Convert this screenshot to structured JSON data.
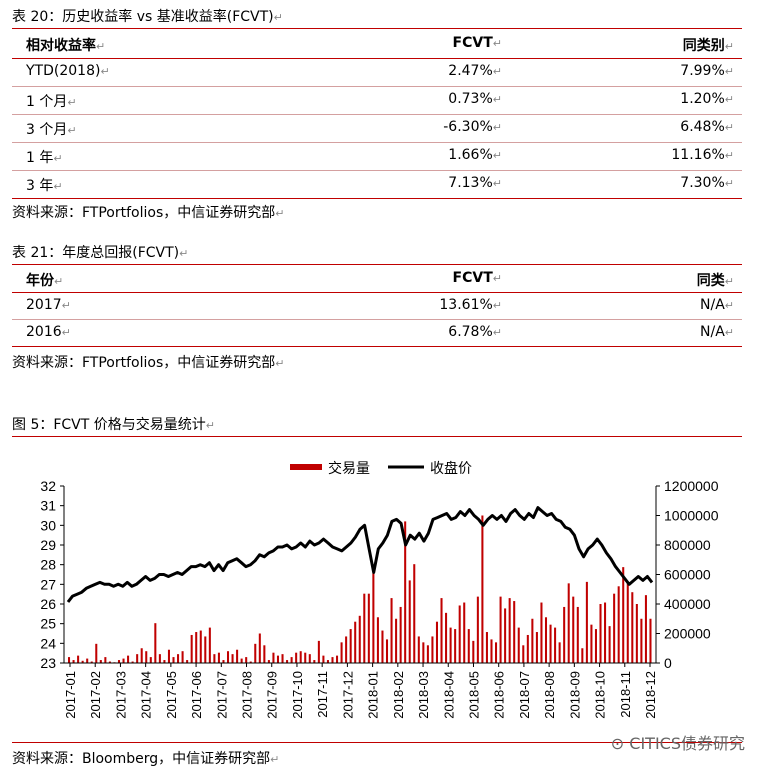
{
  "table20": {
    "caption": "表 20：历史收益率 vs 基准收益率(FCVT)",
    "headers": [
      "相对收益率",
      "FCVT",
      "同类别"
    ],
    "rows": [
      [
        "YTD(2018)",
        "2.47%",
        "7.99%"
      ],
      [
        "1 个月",
        "0.73%",
        "1.20%"
      ],
      [
        "3 个月",
        "-6.30%",
        "6.48%"
      ],
      [
        "1  年",
        "1.66%",
        "11.16%"
      ],
      [
        "3  年",
        "7.13%",
        "7.30%"
      ]
    ],
    "source": "资料来源：FTPortfolios，中信证券研究部"
  },
  "table21": {
    "caption": "表 21：年度总回报(FCVT)",
    "headers": [
      "年份",
      "FCVT",
      "同类"
    ],
    "rows": [
      [
        "2017",
        "13.61%",
        "N/A"
      ],
      [
        "2016",
        "6.78%",
        "N/A"
      ]
    ],
    "source": "资料来源：FTPortfolios，中信证券研究部"
  },
  "figure5": {
    "caption": "图 5：FCVT 价格与交易量统计",
    "source": "资料来源：Bloomberg，中信证券研究部"
  },
  "watermark": "CITICS债券研究",
  "paragraph_mark": "↵",
  "colors": {
    "rule": "#c00000",
    "volume": "#c00000",
    "price": "#000000"
  },
  "chart_data": {
    "type": "bar+line",
    "legend": [
      "交易量",
      "收盘价"
    ],
    "legend_position": "top",
    "x_ticks": [
      "2017-01",
      "2017-02",
      "2017-03",
      "2017-04",
      "2017-05",
      "2017-06",
      "2017-07",
      "2017-08",
      "2017-09",
      "2017-10",
      "2017-11",
      "2017-12",
      "2018-01",
      "2018-02",
      "2018-03",
      "2018-04",
      "2018-05",
      "2018-06",
      "2018-07",
      "2018-08",
      "2018-09",
      "2018-10",
      "2018-11",
      "2018-12"
    ],
    "y_left": {
      "min": 23,
      "max": 32,
      "ticks": [
        23,
        24,
        25,
        26,
        27,
        28,
        29,
        30,
        31,
        32
      ]
    },
    "y_right": {
      "min": 0,
      "max": 1200000,
      "ticks": [
        "0",
        "200000",
        "400000",
        "600000",
        "800000",
        "1000000",
        "1200000"
      ]
    },
    "price": [
      26.1,
      26.4,
      26.5,
      26.6,
      26.8,
      26.9,
      27.0,
      27.1,
      27.0,
      27.0,
      26.9,
      27.0,
      26.9,
      27.1,
      26.9,
      27.0,
      27.2,
      27.4,
      27.2,
      27.3,
      27.5,
      27.5,
      27.4,
      27.5,
      27.6,
      27.5,
      27.7,
      27.9,
      27.9,
      28.0,
      27.9,
      28.1,
      27.7,
      28.0,
      27.7,
      28.1,
      28.2,
      28.3,
      28.1,
      27.9,
      28.0,
      28.2,
      28.5,
      28.4,
      28.6,
      28.7,
      28.9,
      28.9,
      29.0,
      28.8,
      28.9,
      29.1,
      28.9,
      29.2,
      29.0,
      29.1,
      29.3,
      29.1,
      28.9,
      28.8,
      28.7,
      28.9,
      29.1,
      29.4,
      29.8,
      30.0,
      28.8,
      27.6,
      28.8,
      29.1,
      29.5,
      30.2,
      30.3,
      30.1,
      29.0,
      29.5,
      29.3,
      29.6,
      29.2,
      29.6,
      30.3,
      30.4,
      30.5,
      30.6,
      30.3,
      30.4,
      30.7,
      30.5,
      30.8,
      30.5,
      30.3,
      30.0,
      30.3,
      30.5,
      30.3,
      30.5,
      30.2,
      30.6,
      30.8,
      30.5,
      30.3,
      30.6,
      30.4,
      30.9,
      30.7,
      30.5,
      30.6,
      30.3,
      30.2,
      29.9,
      29.8,
      29.5,
      28.8,
      28.4,
      28.8,
      29.0,
      29.3,
      29.0,
      28.6,
      28.3,
      27.9,
      27.6,
      27.3,
      27.0,
      27.2,
      27.4,
      27.2,
      27.4,
      27.1
    ],
    "volume": [
      40000,
      20000,
      50000,
      15000,
      30000,
      10000,
      130000,
      20000,
      40000,
      10000,
      5000,
      20000,
      30000,
      50000,
      10000,
      60000,
      100000,
      80000,
      40000,
      270000,
      60000,
      20000,
      90000,
      40000,
      60000,
      80000,
      20000,
      190000,
      210000,
      220000,
      180000,
      240000,
      60000,
      70000,
      20000,
      80000,
      60000,
      90000,
      30000,
      40000,
      10000,
      130000,
      200000,
      120000,
      20000,
      70000,
      50000,
      60000,
      20000,
      40000,
      70000,
      80000,
      70000,
      60000,
      20000,
      150000,
      50000,
      20000,
      40000,
      50000,
      140000,
      180000,
      230000,
      280000,
      320000,
      470000,
      470000,
      610000,
      310000,
      220000,
      160000,
      440000,
      300000,
      380000,
      960000,
      560000,
      670000,
      180000,
      140000,
      120000,
      180000,
      280000,
      440000,
      340000,
      240000,
      230000,
      390000,
      410000,
      230000,
      150000,
      450000,
      1000000,
      210000,
      160000,
      140000,
      450000,
      370000,
      440000,
      420000,
      240000,
      120000,
      190000,
      300000,
      210000,
      410000,
      310000,
      260000,
      240000,
      140000,
      380000,
      540000,
      450000,
      380000,
      100000,
      550000,
      260000,
      230000,
      400000,
      410000,
      250000,
      470000,
      520000,
      650000,
      550000,
      480000,
      400000,
      300000,
      460000,
      300000
    ]
  }
}
